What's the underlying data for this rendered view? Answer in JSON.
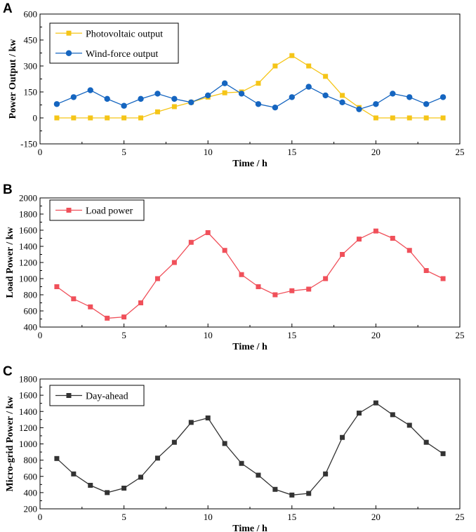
{
  "chart_data": [
    {
      "panel": "A",
      "type": "line",
      "xlabel": "Time / h",
      "ylabel": "Power Output / kw",
      "xlim": [
        0,
        25
      ],
      "ylim": [
        -150,
        600
      ],
      "xticks": [
        0,
        5,
        10,
        15,
        20,
        25
      ],
      "yticks": [
        -150,
        0,
        150,
        300,
        450,
        600
      ],
      "grid": false,
      "legend_position": "top-left",
      "x": [
        1,
        2,
        3,
        4,
        5,
        6,
        7,
        8,
        9,
        10,
        11,
        12,
        13,
        14,
        15,
        16,
        17,
        18,
        19,
        20,
        21,
        22,
        23,
        24
      ],
      "series": [
        {
          "name": "Photovoltaic output",
          "color": "#F5C518",
          "marker": "square",
          "values": [
            0,
            0,
            0,
            0,
            0,
            0,
            35,
            65,
            90,
            120,
            145,
            150,
            200,
            300,
            360,
            300,
            240,
            130,
            60,
            0,
            0,
            0,
            0,
            0
          ]
        },
        {
          "name": "Wind-force output",
          "color": "#1565C0",
          "marker": "circle",
          "values": [
            80,
            120,
            160,
            110,
            70,
            110,
            140,
            110,
            90,
            130,
            200,
            140,
            80,
            60,
            120,
            180,
            130,
            90,
            50,
            80,
            140,
            120,
            80,
            120
          ]
        }
      ]
    },
    {
      "panel": "B",
      "type": "line",
      "xlabel": "Time / h",
      "ylabel": "Load Power / kw",
      "xlim": [
        0,
        25
      ],
      "ylim": [
        400,
        2000
      ],
      "xticks": [
        0,
        5,
        10,
        15,
        20,
        25
      ],
      "yticks": [
        400,
        600,
        800,
        1000,
        1200,
        1400,
        1600,
        1800,
        2000
      ],
      "grid": false,
      "legend_position": "top-left",
      "x": [
        1,
        2,
        3,
        4,
        5,
        6,
        7,
        8,
        9,
        10,
        11,
        12,
        13,
        14,
        15,
        16,
        17,
        18,
        19,
        20,
        21,
        22,
        23,
        24
      ],
      "series": [
        {
          "name": "Load power",
          "color": "#F0505A",
          "marker": "square",
          "values": [
            900,
            750,
            650,
            510,
            525,
            700,
            1000,
            1200,
            1450,
            1570,
            1350,
            1050,
            900,
            800,
            850,
            870,
            1000,
            1300,
            1490,
            1590,
            1500,
            1350,
            1100,
            1000
          ]
        }
      ]
    },
    {
      "panel": "C",
      "type": "line",
      "xlabel": "Time / h",
      "ylabel": "Micro-grid Power / kw",
      "xlim": [
        0,
        25
      ],
      "ylim": [
        200,
        1800
      ],
      "xticks": [
        0,
        5,
        10,
        15,
        20,
        25
      ],
      "yticks": [
        200,
        400,
        600,
        800,
        1000,
        1200,
        1400,
        1600,
        1800
      ],
      "grid": false,
      "legend_position": "top-left",
      "x": [
        1,
        2,
        3,
        4,
        5,
        6,
        7,
        8,
        9,
        10,
        11,
        12,
        13,
        14,
        15,
        16,
        17,
        18,
        19,
        20,
        21,
        22,
        23,
        24
      ],
      "series": [
        {
          "name": "Day-ahead",
          "color": "#333333",
          "marker": "square",
          "values": [
            820,
            630,
            490,
            400,
            455,
            590,
            825,
            1020,
            1265,
            1320,
            1005,
            760,
            615,
            440,
            370,
            390,
            630,
            1080,
            1380,
            1505,
            1360,
            1230,
            1020,
            880
          ]
        }
      ]
    }
  ]
}
